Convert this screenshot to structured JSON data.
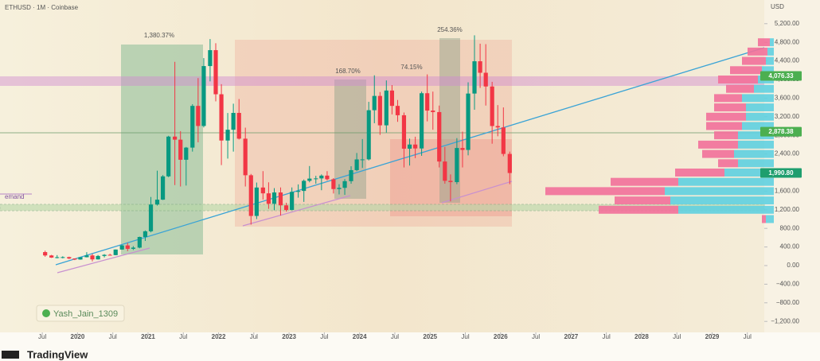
{
  "chart_data": {
    "type": "candlestick",
    "title": "ETHUSD · 1M · Coinbase",
    "currency": "USD",
    "up_color": "#089981",
    "down_color": "#f23645",
    "x": [
      2019.54,
      2019.63,
      2019.71,
      2019.79,
      2019.88,
      2019.96,
      2020.04,
      2020.13,
      2020.21,
      2020.29,
      2020.38,
      2020.46,
      2020.54,
      2020.63,
      2020.71,
      2020.79,
      2020.88,
      2020.96,
      2021.04,
      2021.13,
      2021.21,
      2021.29,
      2021.38,
      2021.46,
      2021.54,
      2021.63,
      2021.71,
      2021.79,
      2021.88,
      2021.96,
      2022.04,
      2022.13,
      2022.21,
      2022.29,
      2022.38,
      2022.46,
      2022.54,
      2022.63,
      2022.71,
      2022.79,
      2022.88,
      2022.96,
      2023.04,
      2023.13,
      2023.21,
      2023.29,
      2023.38,
      2023.46,
      2023.54,
      2023.63,
      2023.71,
      2023.79,
      2023.88,
      2023.96,
      2024.04,
      2024.13,
      2024.21,
      2024.29,
      2024.38,
      2024.46,
      2024.54,
      2024.63,
      2024.71,
      2024.79,
      2024.88,
      2024.96,
      2025.04,
      2025.13,
      2025.21,
      2025.29,
      2025.38,
      2025.46,
      2025.54,
      2025.63,
      2025.71,
      2025.79,
      2025.88,
      2025.96,
      2026.04,
      2026.13
    ],
    "ohlc": [
      [
        290,
        320,
        190,
        218
      ],
      [
        218,
        230,
        165,
        172
      ],
      [
        172,
        225,
        155,
        180
      ],
      [
        180,
        200,
        155,
        182
      ],
      [
        182,
        192,
        140,
        152
      ],
      [
        152,
        155,
        118,
        130
      ],
      [
        130,
        180,
        126,
        180
      ],
      [
        180,
        288,
        176,
        218
      ],
      [
        218,
        253,
        90,
        133
      ],
      [
        133,
        227,
        130,
        207
      ],
      [
        207,
        246,
        176,
        231
      ],
      [
        231,
        255,
        215,
        225
      ],
      [
        225,
        346,
        222,
        345
      ],
      [
        345,
        445,
        340,
        434
      ],
      [
        434,
        488,
        310,
        360
      ],
      [
        360,
        418,
        335,
        386
      ],
      [
        386,
        622,
        372,
        615
      ],
      [
        615,
        755,
        530,
        737
      ],
      [
        737,
        1475,
        715,
        1312
      ],
      [
        1312,
        2040,
        1290,
        1417
      ],
      [
        1417,
        1945,
        1410,
        1918
      ],
      [
        1918,
        2790,
        1900,
        2773
      ],
      [
        2773,
        4380,
        1730,
        2707
      ],
      [
        2707,
        2890,
        1700,
        2275
      ],
      [
        2275,
        2550,
        1720,
        2536
      ],
      [
        2536,
        3470,
        2450,
        3433
      ],
      [
        3433,
        4030,
        2650,
        3001
      ],
      [
        3001,
        4460,
        2970,
        4289
      ],
      [
        4289,
        4870,
        3960,
        4631
      ],
      [
        4631,
        4780,
        3530,
        3683
      ],
      [
        3683,
        3900,
        2160,
        2688
      ],
      [
        2688,
        3280,
        2300,
        2920
      ],
      [
        2920,
        3480,
        2450,
        3282
      ],
      [
        3282,
        3580,
        2710,
        2728
      ],
      [
        2728,
        2965,
        1700,
        1942
      ],
      [
        1942,
        1970,
        880,
        1067
      ],
      [
        1067,
        1785,
        1000,
        1678
      ],
      [
        1678,
        2030,
        1420,
        1553
      ],
      [
        1553,
        1790,
        1220,
        1328
      ],
      [
        1328,
        1665,
        1190,
        1572
      ],
      [
        1572,
        1680,
        1075,
        1295
      ],
      [
        1295,
        1350,
        1160,
        1196
      ],
      [
        1196,
        1680,
        1190,
        1585
      ],
      [
        1585,
        1745,
        1460,
        1605
      ],
      [
        1605,
        1850,
        1370,
        1822
      ],
      [
        1822,
        2140,
        1790,
        1870
      ],
      [
        1870,
        1930,
        1760,
        1874
      ],
      [
        1874,
        1960,
        1620,
        1934
      ],
      [
        1934,
        2030,
        1830,
        1856
      ],
      [
        1856,
        1880,
        1550,
        1645
      ],
      [
        1645,
        1750,
        1530,
        1671
      ],
      [
        1671,
        1860,
        1520,
        1815
      ],
      [
        1815,
        2135,
        1760,
        2052
      ],
      [
        2052,
        2420,
        2030,
        2282
      ],
      [
        2282,
        2720,
        2100,
        2283
      ],
      [
        2283,
        3520,
        2260,
        3340
      ],
      [
        3340,
        4090,
        3060,
        3647
      ],
      [
        3647,
        3730,
        2810,
        3015
      ],
      [
        3015,
        3980,
        2860,
        3763
      ],
      [
        3763,
        3880,
        3250,
        3433
      ],
      [
        3433,
        3560,
        3090,
        3232
      ],
      [
        3232,
        3290,
        2110,
        2513
      ],
      [
        2513,
        2730,
        2150,
        2602
      ],
      [
        2602,
        2770,
        2310,
        2518
      ],
      [
        2518,
        3740,
        2360,
        3705
      ],
      [
        3705,
        4110,
        3100,
        3332
      ],
      [
        3332,
        3740,
        2920,
        3300
      ],
      [
        3300,
        3440,
        2110,
        2237
      ],
      [
        2237,
        2550,
        1760,
        1822
      ],
      [
        1822,
        1960,
        1380,
        1794
      ],
      [
        1794,
        2740,
        1750,
        2528
      ],
      [
        2528,
        2880,
        2110,
        2486
      ],
      [
        2486,
        3940,
        2370,
        3698
      ],
      [
        3698,
        4950,
        3350,
        4392
      ],
      [
        4392,
        4770,
        3820,
        4145
      ],
      [
        4145,
        4760,
        3440,
        3850
      ],
      [
        3850,
        3950,
        2620,
        3000
      ],
      [
        3000,
        3450,
        2780,
        2970
      ],
      [
        2970,
        3400,
        2350,
        2400
      ],
      [
        2400,
        2450,
        1750,
        1990
      ]
    ],
    "xlim": [
      2018.9,
      2029.74
    ],
    "ylim": [
      -1470,
      5709
    ],
    "xticks": [
      {
        "value": 2019.5,
        "label": "Jul"
      },
      2020,
      {
        "value": 2020.5,
        "label": "Jul"
      },
      2021,
      {
        "value": 2021.5,
        "label": "Jul"
      },
      2022,
      {
        "value": 2022.5,
        "label": "Jul"
      },
      2023,
      {
        "value": 2023.5,
        "label": "Jul"
      },
      2024,
      {
        "value": 2024.5,
        "label": "Jul"
      },
      2025,
      {
        "value": 2025.5,
        "label": "Jul"
      },
      2026,
      {
        "value": 2026.5,
        "label": "Jul"
      },
      2027,
      {
        "value": 2027.5,
        "label": "Jul"
      },
      2028,
      {
        "value": 2028.5,
        "label": "Jul"
      },
      2029,
      {
        "value": 2029.5,
        "label": "Jul"
      }
    ],
    "yticks": [
      {
        "value": 5200,
        "label": "5,200.00"
      },
      {
        "value": 4800,
        "label": "4,800.00"
      },
      {
        "value": 4400,
        "label": "4,400.00"
      },
      {
        "value": 4000,
        "label": "4,000.00"
      },
      {
        "value": 3600,
        "label": "3,600.00"
      },
      {
        "value": 3200,
        "label": "3,200.00"
      },
      {
        "value": 2800,
        "label": "2,800.00"
      },
      {
        "value": 2400,
        "label": "2,400.00"
      },
      {
        "value": 2000,
        "label": "2,000.00"
      },
      {
        "value": 1600,
        "label": "1,600.00"
      },
      {
        "value": 1200,
        "label": "1,200.00"
      },
      {
        "value": 800,
        "label": "800.00"
      },
      {
        "value": 400,
        "label": "400.00"
      },
      {
        "value": 0,
        "label": "0.00"
      },
      {
        "value": -400,
        "label": "−400.00"
      },
      {
        "value": -800,
        "label": "−800.00"
      },
      {
        "value": -1200,
        "label": "−1,200.00"
      }
    ],
    "price_labels": [
      {
        "value": 4076.33,
        "label": "4,076.33"
      },
      {
        "value": 2878.38,
        "label": "2,878.38"
      },
      {
        "value": 1990.8,
        "label": "1,990.80"
      }
    ],
    "annotations": [
      "1,380.37%",
      "168.70%",
      "74.15%",
      "254.36%",
      "emand"
    ],
    "watermark": "Yash_Jain_1309",
    "volume_profile": {
      "prices": [
        4800,
        4600,
        4400,
        4200,
        4000,
        3800,
        3600,
        3400,
        3200,
        3000,
        2800,
        2600,
        2400,
        2200,
        2000,
        1800,
        1600,
        1400,
        1200,
        1000
      ],
      "up": [
        5,
        8,
        10,
        15,
        20,
        25,
        40,
        35,
        35,
        40,
        45,
        45,
        50,
        45,
        62,
        120,
        137,
        130,
        120,
        10
      ],
      "down": [
        15,
        25,
        30,
        40,
        50,
        35,
        35,
        40,
        50,
        45,
        30,
        50,
        40,
        25,
        62,
        85,
        150,
        70,
        100,
        5
      ]
    }
  },
  "brand": "TradingView"
}
